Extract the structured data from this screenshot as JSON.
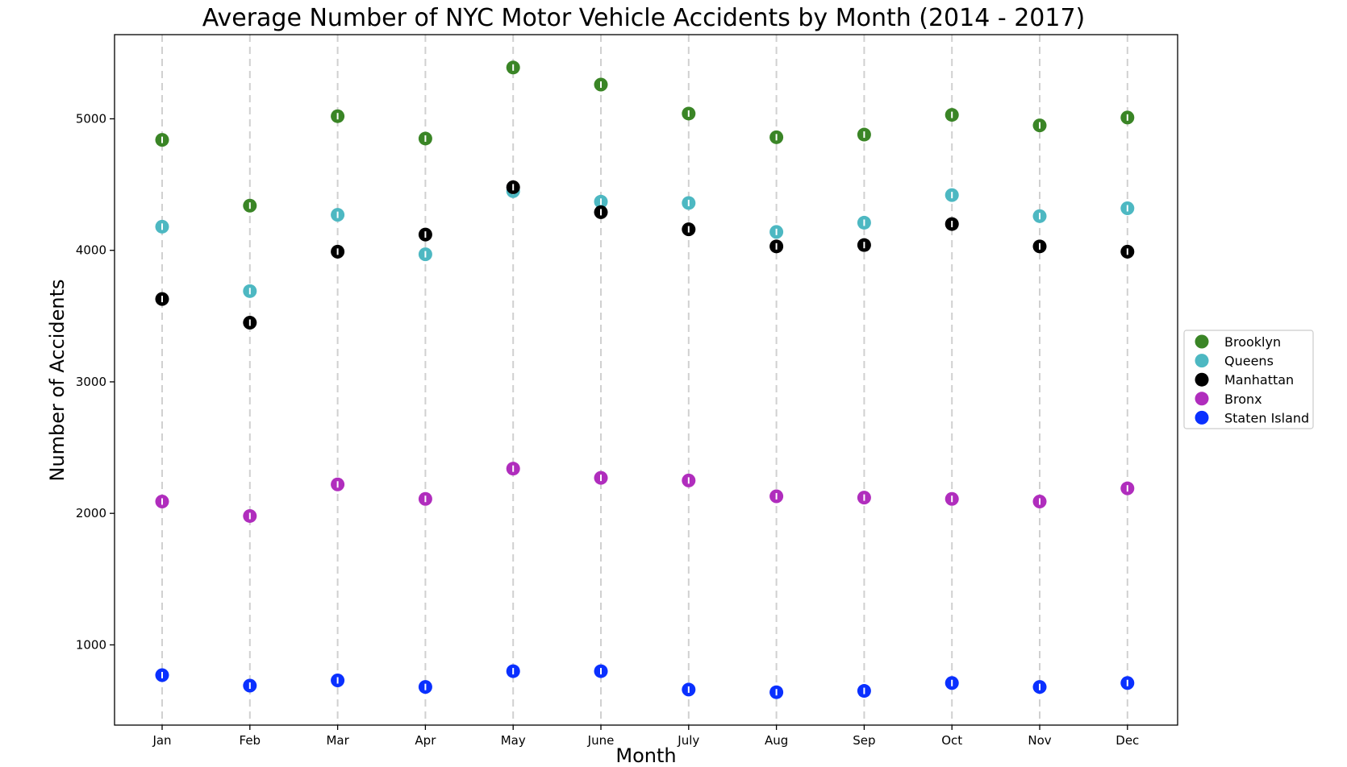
{
  "chart_data": {
    "type": "scatter",
    "title": "Average Number of NYC Motor Vehicle Accidents by Month (2014 - 2017)",
    "xlabel": "Month",
    "ylabel": "Number of Accidents",
    "categories": [
      "Jan",
      "Feb",
      "Mar",
      "Apr",
      "May",
      "June",
      "July",
      "Aug",
      "Sep",
      "Oct",
      "Nov",
      "Dec"
    ],
    "ylim": [
      390,
      5640
    ],
    "yticks": [
      1000,
      2000,
      3000,
      4000,
      5000
    ],
    "grid": "vertical dashed lines at each month",
    "legend_position": "right, outside plot",
    "series": [
      {
        "name": "Brooklyn",
        "color": "#3a8526",
        "values": [
          4840,
          4340,
          5020,
          4850,
          5390,
          5260,
          5040,
          4860,
          4880,
          5030,
          4950,
          5010
        ]
      },
      {
        "name": "Queens",
        "color": "#4db8c2",
        "values": [
          4180,
          3690,
          4270,
          3970,
          4450,
          4370,
          4360,
          4140,
          4210,
          4420,
          4260,
          4320
        ]
      },
      {
        "name": "Manhattan",
        "color": "#000000",
        "values": [
          3630,
          3450,
          3990,
          4120,
          4480,
          4290,
          4160,
          4030,
          4040,
          4200,
          4030,
          3990
        ]
      },
      {
        "name": "Bronx",
        "color": "#b02dbd",
        "values": [
          2090,
          1980,
          2220,
          2110,
          2340,
          2270,
          2250,
          2130,
          2120,
          2110,
          2090,
          2190
        ]
      },
      {
        "name": "Staten Island",
        "color": "#0a30ff",
        "values": [
          770,
          690,
          730,
          680,
          800,
          800,
          660,
          640,
          650,
          710,
          680,
          710
        ]
      }
    ]
  }
}
